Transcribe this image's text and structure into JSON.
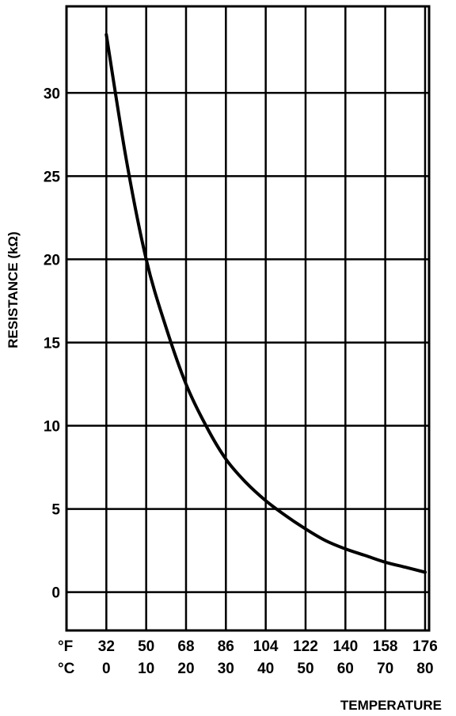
{
  "chart_data": {
    "type": "line",
    "xlabel": "TEMPERATURE",
    "ylabel": "RESISTANCE (kΩ)",
    "x_unit_f_label": "°F",
    "x_unit_c_label": "°C",
    "xlim": [
      -10,
      81
    ],
    "ylim": [
      -2.3,
      35.2
    ],
    "x_ticks_c": [
      0,
      10,
      20,
      30,
      40,
      50,
      60,
      70,
      80
    ],
    "x_ticks_f": [
      32,
      50,
      68,
      86,
      104,
      122,
      140,
      158,
      176
    ],
    "y_ticks": [
      0,
      5,
      10,
      15,
      20,
      25,
      30
    ],
    "grid": true,
    "legend": "none",
    "series": [
      {
        "x": [
          0,
          5,
          10,
          15,
          20,
          25,
          30,
          35,
          40,
          45,
          50,
          55,
          60,
          65,
          70,
          75,
          80
        ],
        "y": [
          33.5,
          26.0,
          20.0,
          15.9,
          12.5,
          10.0,
          8.0,
          6.6,
          5.5,
          4.6,
          3.8,
          3.1,
          2.6,
          2.2,
          1.8,
          1.5,
          1.2
        ]
      }
    ]
  }
}
